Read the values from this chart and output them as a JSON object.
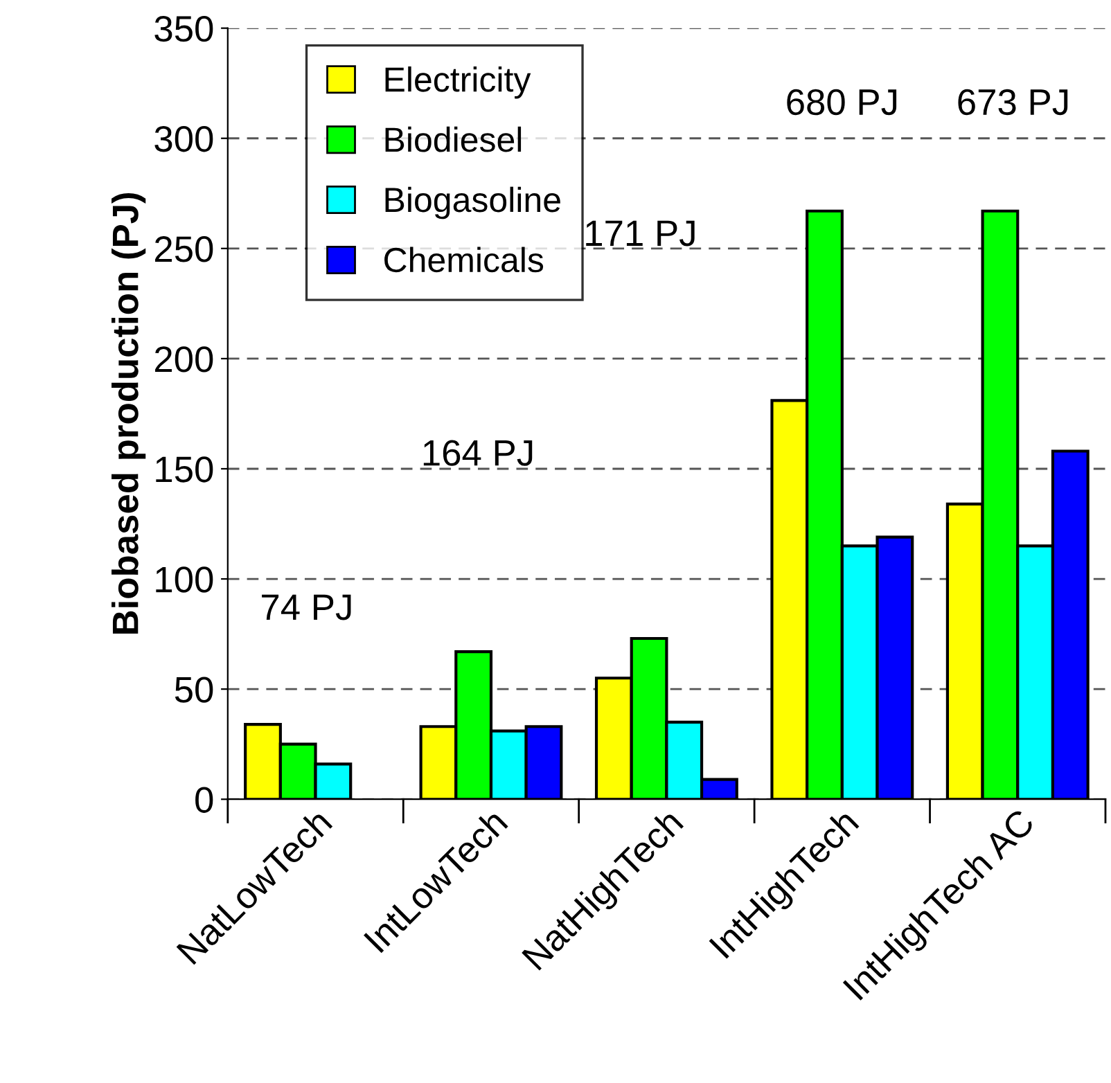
{
  "chart_data": {
    "type": "bar",
    "ylabel": "Biobased production (PJ)",
    "categories": [
      "NatLowTech",
      "IntLowTech",
      "NatHighTech",
      "IntHighTech",
      "IntHighTech AC"
    ],
    "series": [
      {
        "name": "Electricity",
        "color": "#ffff00",
        "values": [
          34,
          33,
          55,
          181,
          134
        ]
      },
      {
        "name": "Biodiesel",
        "color": "#00ff00",
        "values": [
          25,
          67,
          73,
          267,
          267
        ]
      },
      {
        "name": "Biogasoline",
        "color": "#00ffff",
        "values": [
          16,
          31,
          35,
          115,
          115
        ]
      },
      {
        "name": "Chemicals",
        "color": "#0000ff",
        "values": [
          null,
          33,
          9,
          119,
          158
        ]
      }
    ],
    "annotations": [
      "74 PJ",
      "164 PJ",
      "171 PJ",
      "680 PJ",
      "673 PJ"
    ],
    "ylim": [
      0,
      350
    ],
    "yticks": [
      0,
      50,
      100,
      150,
      200,
      250,
      300,
      350
    ],
    "grid": "y",
    "legend": "top left"
  }
}
